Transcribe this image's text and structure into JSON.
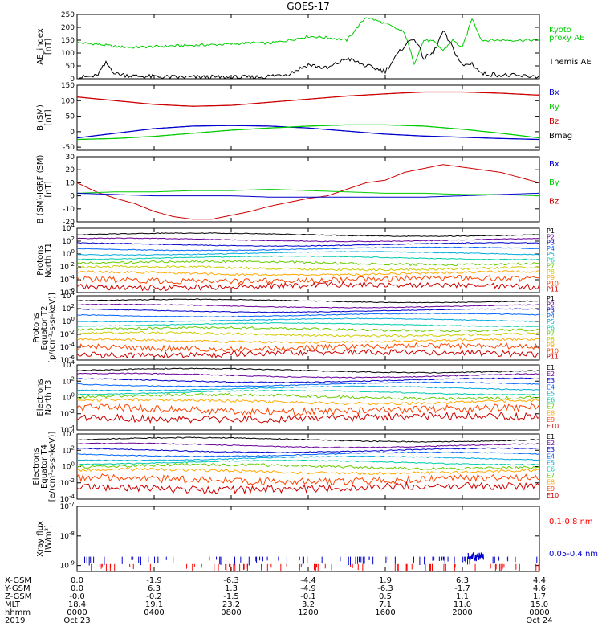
{
  "chart_data": {
    "type": "line",
    "title": "GOES-17",
    "panels": [
      {
        "ylabel": [
          "AE_index",
          "[nT]"
        ],
        "yticks": [
          "250",
          "200",
          "150",
          "100",
          "50",
          "0"
        ],
        "ylim": [
          0,
          250
        ],
        "legend": [
          {
            "label": "Kyoto",
            "color": "#00cc00"
          },
          {
            "label": "proxy AE",
            "color": "#00cc00"
          },
          {
            "label": "Themis AE",
            "color": "#000000"
          }
        ],
        "series": [
          {
            "name": "Kyoto proxy AE",
            "color": "#00cc00",
            "x": [
              0,
              1,
              2,
              3,
              4,
              5,
              6,
              7,
              8,
              9,
              10,
              11,
              12,
              13,
              14,
              15,
              16,
              17,
              17.5,
              18,
              18.5,
              19,
              19.5,
              20,
              20.5,
              21,
              22,
              23,
              24
            ],
            "y": [
              140,
              135,
              125,
              122,
              125,
              128,
              130,
              132,
              135,
              140,
              138,
              150,
              165,
              160,
              150,
              240,
              215,
              180,
              60,
              150,
              145,
              110,
              150,
              120,
              235,
              150,
              150,
              150,
              150
            ]
          },
          {
            "name": "Themis AE",
            "color": "#000000",
            "x": [
              0,
              1,
              1.5,
              2,
              3,
              4,
              5,
              6,
              7,
              8,
              9,
              10,
              11,
              12,
              13,
              14,
              15,
              16,
              17,
              17.5,
              18,
              18.5,
              19,
              19.5,
              20,
              20.5,
              21,
              22,
              23,
              24
            ],
            "y": [
              5,
              10,
              60,
              20,
              10,
              8,
              6,
              6,
              6,
              5,
              5,
              10,
              20,
              55,
              40,
              80,
              50,
              30,
              130,
              160,
              80,
              100,
              185,
              120,
              50,
              60,
              20,
              15,
              10,
              10
            ]
          }
        ]
      },
      {
        "ylabel": [
          "B (SM)",
          "[nT]"
        ],
        "yticks": [
          "150",
          "100",
          "50",
          "0",
          "-50"
        ],
        "ylim": [
          -60,
          150
        ],
        "legend": [
          {
            "label": "Bx",
            "color": "#0000cc"
          },
          {
            "label": "By",
            "color": "#00cc00"
          },
          {
            "label": "Bz",
            "color": "#cc0000"
          },
          {
            "label": "Bmag",
            "color": "#000000"
          }
        ],
        "series": [
          {
            "name": "Bz",
            "color": "#cc0000",
            "x": [
              0,
              2,
              4,
              6,
              8,
              10,
              12,
              14,
              16,
              18,
              20,
              22,
              24
            ],
            "y": [
              112,
              100,
              88,
              82,
              85,
              95,
              105,
              115,
              122,
              128,
              128,
              124,
              118
            ]
          },
          {
            "name": "Bx",
            "color": "#0000cc",
            "x": [
              0,
              2,
              4,
              6,
              8,
              10,
              12,
              14,
              16,
              18,
              20,
              22,
              24
            ],
            "y": [
              -20,
              -5,
              10,
              18,
              20,
              18,
              12,
              2,
              -8,
              -14,
              -18,
              -22,
              -25
            ]
          },
          {
            "name": "By",
            "color": "#00cc00",
            "x": [
              0,
              2,
              4,
              6,
              8,
              10,
              12,
              14,
              16,
              18,
              20,
              22,
              24
            ],
            "y": [
              -25,
              -22,
              -15,
              -5,
              5,
              12,
              18,
              22,
              22,
              18,
              8,
              -5,
              -20
            ]
          }
        ]
      },
      {
        "ylabel": [
          "B (SM)-IGRF (SM)",
          "[nT]"
        ],
        "yticks": [
          "30",
          "20",
          "10",
          "0",
          "-10",
          "-20"
        ],
        "ylim": [
          -20,
          30
        ],
        "legend": [
          {
            "label": "Bx",
            "color": "#0000cc"
          },
          {
            "label": "By",
            "color": "#00cc00"
          },
          {
            "label": "Bz",
            "color": "#cc0000"
          }
        ],
        "series": [
          {
            "name": "Bz",
            "color": "#cc0000",
            "x": [
              0,
              1,
              2,
              3,
              4,
              5,
              6,
              7,
              8,
              9,
              10,
              11,
              12,
              13,
              14,
              15,
              16,
              17,
              18,
              19,
              20,
              21,
              22,
              23,
              24
            ],
            "y": [
              10,
              3,
              -2,
              -6,
              -12,
              -16,
              -18,
              -18,
              -15,
              -12,
              -8,
              -5,
              -2,
              0,
              5,
              10,
              12,
              18,
              21,
              24,
              22,
              20,
              18,
              14,
              10
            ]
          },
          {
            "name": "By",
            "color": "#00cc00",
            "x": [
              0,
              2,
              4,
              6,
              8,
              10,
              12,
              14,
              16,
              18,
              20,
              22,
              24
            ],
            "y": [
              2,
              3,
              3,
              4,
              4,
              5,
              4,
              3,
              2,
              2,
              1,
              1,
              0
            ]
          },
          {
            "name": "Bx",
            "color": "#0000cc",
            "x": [
              0,
              2,
              4,
              6,
              8,
              10,
              12,
              14,
              16,
              18,
              20,
              22,
              24
            ],
            "y": [
              2,
              1,
              0,
              0,
              0,
              -1,
              -1,
              -1,
              -1,
              -1,
              0,
              1,
              2
            ]
          }
        ]
      },
      {
        "ylabel": [
          "Protons",
          "North T1"
        ],
        "yticks": [
          "10^4",
          "10^2",
          "10^0",
          "10^-2",
          "10^-4",
          "10^-6"
        ],
        "ylim": [
          -6,
          4
        ],
        "log": true,
        "channels": [
          {
            "label": "P1",
            "color": "#000000",
            "level": 3.0
          },
          {
            "label": "P2",
            "color": "#660099",
            "level": 2.2
          },
          {
            "label": "P3",
            "color": "#0000cc",
            "level": 1.5
          },
          {
            "label": "P4",
            "color": "#0066ff",
            "level": 0.8
          },
          {
            "label": "P5",
            "color": "#00aadd",
            "level": 0.1
          },
          {
            "label": "P6",
            "color": "#00ccaa",
            "level": -0.6
          },
          {
            "label": "P7",
            "color": "#66cc00",
            "level": -1.4
          },
          {
            "label": "P8",
            "color": "#cccc00",
            "level": -2.2
          },
          {
            "label": "P9",
            "color": "#ffaa00",
            "level": -3.0
          },
          {
            "label": "P10",
            "color": "#ff4400",
            "level": -4.0
          },
          {
            "label": "P11",
            "color": "#cc0000",
            "level": -5.0
          }
        ]
      },
      {
        "ylabel": [
          "Protons",
          "Equator T2",
          "[p/(cm²-s-sr-keV)]"
        ],
        "yticks": [
          "10^4",
          "10^2",
          "10^0",
          "10^-2",
          "10^-4",
          "10^-6"
        ],
        "ylim": [
          -6,
          4
        ],
        "log": true,
        "channels": [
          {
            "label": "P1",
            "color": "#000000",
            "level": 3.2
          },
          {
            "label": "P2",
            "color": "#660099",
            "level": 2.4
          },
          {
            "label": "P3",
            "color": "#0000cc",
            "level": 1.7
          },
          {
            "label": "P4",
            "color": "#0066ff",
            "level": 1.0
          },
          {
            "label": "P5",
            "color": "#00aadd",
            "level": 0.2
          },
          {
            "label": "P6",
            "color": "#00ccaa",
            "level": -0.5
          },
          {
            "label": "P7",
            "color": "#66cc00",
            "level": -1.2
          },
          {
            "label": "P8",
            "color": "#cccc00",
            "level": -2.0
          },
          {
            "label": "P9",
            "color": "#ffaa00",
            "level": -3.0
          },
          {
            "label": "P10",
            "color": "#ff4400",
            "level": -4.0
          },
          {
            "label": "P11",
            "color": "#cc0000",
            "level": -5.0
          }
        ]
      },
      {
        "ylabel": [
          "Electrons",
          "North T3"
        ],
        "yticks": [
          "10^4",
          "10^2",
          "10^0",
          "10^-2",
          "10^-4"
        ],
        "ylim": [
          -4,
          4
        ],
        "log": true,
        "channels": [
          {
            "label": "E1",
            "color": "#000000",
            "level": 3.3
          },
          {
            "label": "E2",
            "color": "#660099",
            "level": 2.7
          },
          {
            "label": "E3",
            "color": "#0000cc",
            "level": 2.1
          },
          {
            "label": "E4",
            "color": "#0066ff",
            "level": 1.6
          },
          {
            "label": "E5",
            "color": "#00aadd",
            "level": 1.1
          },
          {
            "label": "E6",
            "color": "#00ccaa",
            "level": 0.6
          },
          {
            "label": "E7",
            "color": "#66cc00",
            "level": 0.1
          },
          {
            "label": "E8",
            "color": "#ffaa00",
            "level": -0.5
          },
          {
            "label": "E9",
            "color": "#ff4400",
            "level": -1.5
          },
          {
            "label": "E10",
            "color": "#cc0000",
            "level": -2.5
          }
        ]
      },
      {
        "ylabel": [
          "Electrons",
          "Equator T4",
          "[e/(cm²-s-sr-keV)]"
        ],
        "yticks": [
          "10^4",
          "10^2",
          "10^0",
          "10^-2",
          "10^-4"
        ],
        "ylim": [
          -4,
          4
        ],
        "log": true,
        "channels": [
          {
            "label": "E1",
            "color": "#000000",
            "level": 3.3
          },
          {
            "label": "E2",
            "color": "#660099",
            "level": 2.6
          },
          {
            "label": "E3",
            "color": "#0000cc",
            "level": 2.0
          },
          {
            "label": "E4",
            "color": "#0066ff",
            "level": 1.5
          },
          {
            "label": "E5",
            "color": "#00aadd",
            "level": 1.0
          },
          {
            "label": "E6",
            "color": "#00ccaa",
            "level": 0.5
          },
          {
            "label": "E7",
            "color": "#66cc00",
            "level": 0.0
          },
          {
            "label": "E8",
            "color": "#ffaa00",
            "level": -0.6
          },
          {
            "label": "E9",
            "color": "#ff4400",
            "level": -1.6
          },
          {
            "label": "E10",
            "color": "#cc0000",
            "level": -2.6
          }
        ]
      },
      {
        "ylabel": [
          "Xray flux",
          "[W/m²]"
        ],
        "yticks": [
          "10^-7",
          "10^-8",
          "10^-9"
        ],
        "ylim": [
          -9.2,
          -7
        ],
        "log": true,
        "legend": [
          {
            "label": "0.1-0.8 nm",
            "color": "#ff0000"
          },
          {
            "label": "0.05-0.4 nm",
            "color": "#0000cc"
          }
        ]
      }
    ],
    "x_axis": {
      "range": [
        0,
        24
      ],
      "tick_hours": [
        0,
        4,
        8,
        12,
        16,
        20,
        24
      ],
      "rows": [
        {
          "label": "X-GSM",
          "values": [
            "0.0",
            "-1.9",
            "-6.3",
            "-4.4",
            "1.9",
            "6.3",
            "4.4"
          ]
        },
        {
          "label": "Y-GSM",
          "values": [
            "0.0",
            "6.3",
            "1.3",
            "-4.9",
            "-6.3",
            "-1.7",
            "4.6"
          ]
        },
        {
          "label": "Z-GSM",
          "values": [
            "-0.0",
            "-0.2",
            "-1.5",
            "-0.1",
            "0.5",
            "1.1",
            "1.7"
          ]
        },
        {
          "label": "MLT",
          "values": [
            "18.4",
            "19.1",
            "23.2",
            "3.2",
            "7.1",
            "11.0",
            "15.0"
          ]
        },
        {
          "label": "hhmm",
          "values": [
            "0000",
            "0400",
            "0800",
            "1200",
            "1600",
            "2000",
            "0000"
          ]
        },
        {
          "label": "2019",
          "values": [
            "Oct 23",
            "",
            "",
            "",
            "",
            "",
            "Oct 24"
          ]
        }
      ]
    }
  }
}
